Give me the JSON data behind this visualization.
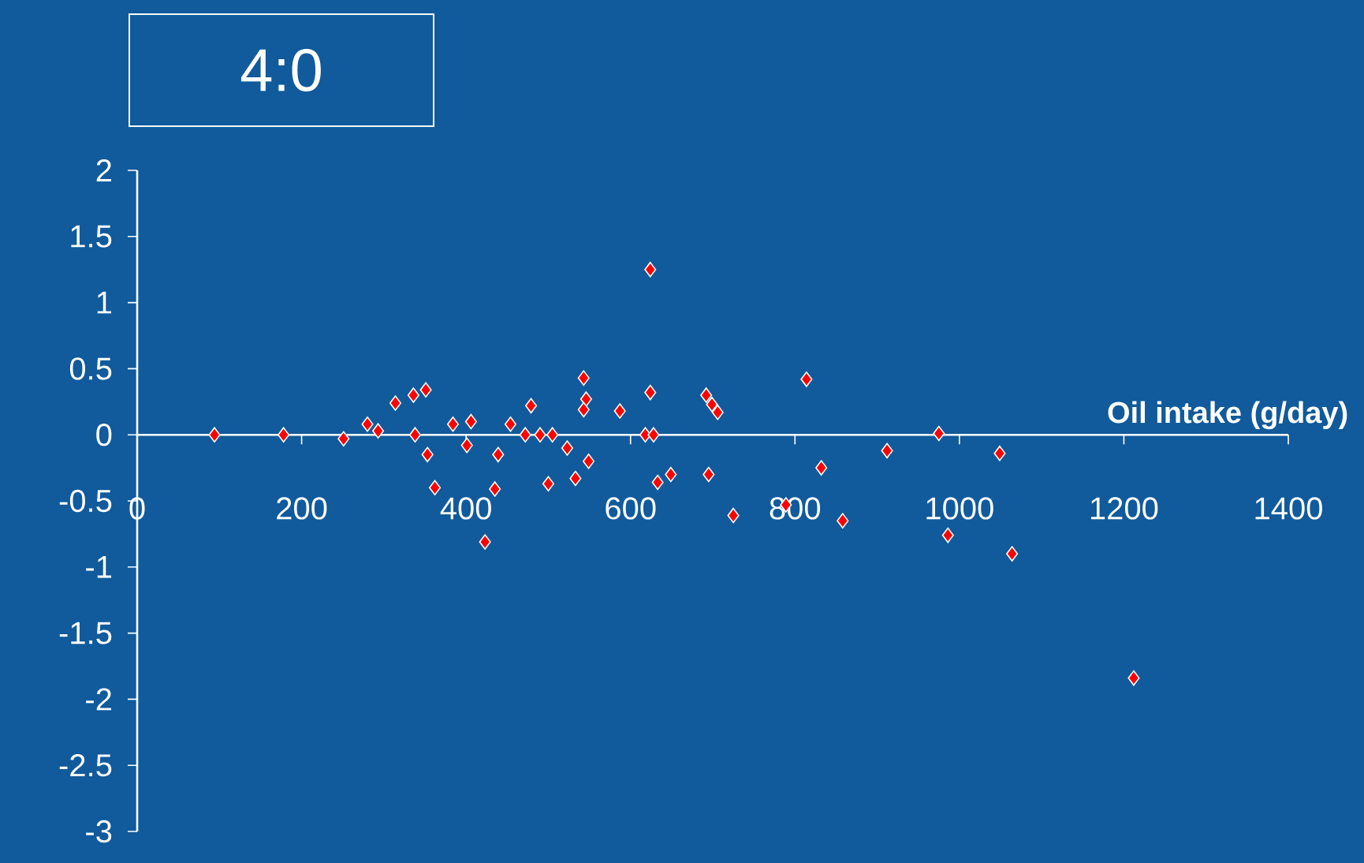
{
  "chart_data": {
    "type": "scatter",
    "title": "4:0",
    "xlabel": "Oil intake (g/day)",
    "x": [
      94,
      178,
      251,
      280,
      293,
      314,
      336,
      351,
      338,
      353,
      362,
      384,
      401,
      406,
      439,
      435,
      423,
      454,
      472,
      479,
      490,
      505,
      523,
      500,
      533,
      549,
      543,
      546,
      543,
      587,
      624,
      624,
      618,
      628,
      633,
      649,
      692,
      699,
      706,
      695,
      725,
      789,
      814,
      832,
      858,
      912,
      975,
      986,
      1049,
      1064,
      1212
    ],
    "values": [
      0,
      0,
      -0.03,
      0.08,
      0.03,
      0.24,
      0.3,
      0.34,
      0,
      -0.15,
      -0.4,
      0.08,
      -0.08,
      0.1,
      -0.15,
      -0.41,
      -0.81,
      0.08,
      0,
      0.22,
      0,
      0,
      -0.1,
      -0.37,
      -0.33,
      -0.2,
      0.43,
      0.27,
      0.19,
      0.18,
      1.25,
      0.32,
      0,
      0,
      -0.36,
      -0.3,
      0.3,
      0.23,
      0.17,
      -0.3,
      -0.61,
      -0.53,
      0.42,
      -0.25,
      -0.65,
      -0.12,
      0.01,
      -0.76,
      -0.14,
      -0.9,
      -1.84
    ],
    "color": "#ff0000",
    "marker": "diamond",
    "xlim": [
      0,
      1400
    ],
    "ylim": [
      -3,
      2
    ],
    "xticks": [
      0,
      200,
      400,
      600,
      800,
      1000,
      1200,
      1400
    ],
    "yticks": [
      -3,
      -2.5,
      -2,
      -1.5,
      -1,
      -0.5,
      0,
      0.5,
      1,
      1.5,
      2
    ]
  }
}
